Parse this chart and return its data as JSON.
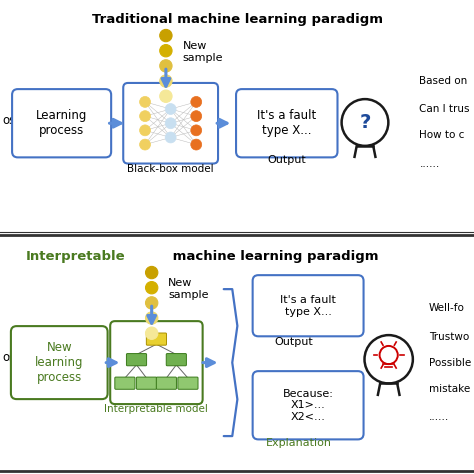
{
  "bg_color": "#ffffff",
  "title1": "Traditional machine learning paradigm",
  "title2_green": "Interpretable",
  "title2_black": " machine learning paradigm",
  "blue": "#4472C4",
  "green_dark": "#4A7A20",
  "green_light": "#6AAA30",
  "arrow_blue": "#5B8DD9",
  "dot_colors": [
    "#C8A000",
    "#D4B000",
    "#E0C040",
    "#ECD870",
    "#F5E898"
  ],
  "neural_yellow": "#F0D060",
  "neural_orange": "#E87020",
  "neural_blue": "#C8DFF0",
  "tree_yellow": "#E8D030",
  "tree_green1": "#70B050",
  "tree_green2": "#90C870",
  "sep_color": "#333333"
}
